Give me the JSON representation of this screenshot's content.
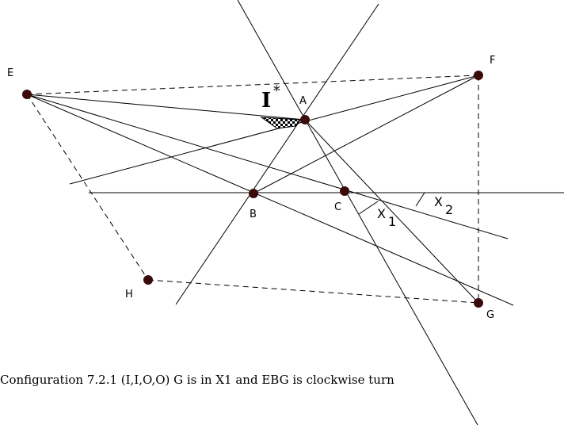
{
  "points": {
    "E": "E",
    "F": "F",
    "A": "A",
    "B": "B",
    "C": "C",
    "H": "H",
    "G": "G"
  },
  "region_labels": {
    "x1": "X",
    "x1_sub": "1",
    "x2": "X",
    "x2_sub": "2",
    "istar": "I",
    "istar_sup": "*"
  },
  "caption": "Configuration 7.2.1 (I,I,O,O) G is in X1 and EBG is clockwise turn",
  "colors": {
    "stroke": "#000000",
    "point_fill": "#3a0a0a"
  }
}
